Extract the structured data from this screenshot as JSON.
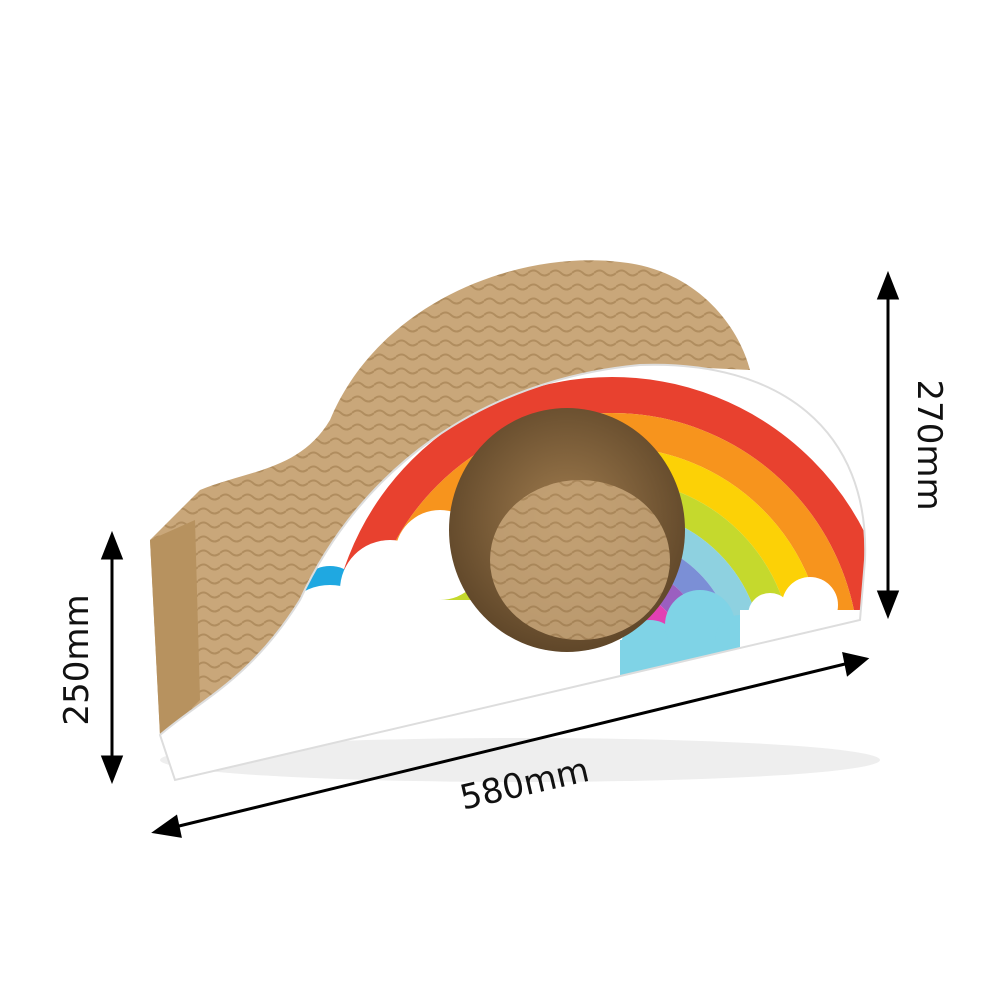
{
  "product": {
    "icon": "rainbow-cloud-cat-scratcher",
    "colors": {
      "cardboard": "#c9a77a",
      "cardboard_dark": "#a8865a",
      "rainbow": [
        "#e8412f",
        "#f7941d",
        "#fcd106",
        "#c5d92d",
        "#8ed1e0",
        "#7b8fd6",
        "#9b5fc0",
        "#e240b4"
      ],
      "cloud_white": "#ffffff",
      "cloud_blue": "#7fd3e6",
      "sky_blue": "#1fa8e1"
    }
  },
  "dimensions": {
    "height_left": "250mm",
    "height_right": "270mm",
    "length": "580mm"
  }
}
